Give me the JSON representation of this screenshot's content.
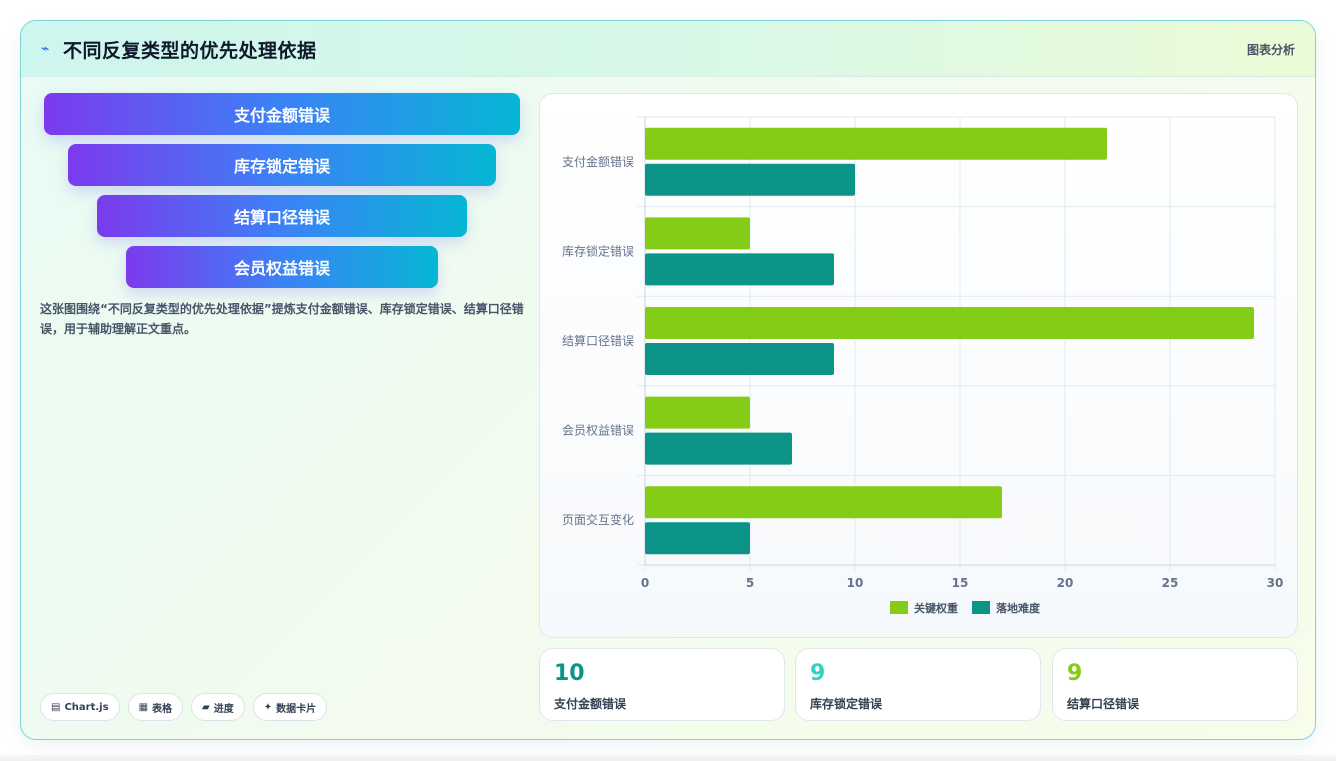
{
  "header": {
    "icon": "trend-icon",
    "title": "不同反复类型的优先处理依据",
    "tag": "图表分析"
  },
  "funnel": [
    {
      "label": "支付金额错误"
    },
    {
      "label": "库存锁定错误"
    },
    {
      "label": "结算口径错误"
    },
    {
      "label": "会员权益错误"
    }
  ],
  "description": "这张图围绕“不同反复类型的优先处理依据”提炼支付金额错误、库存锁定错误、结算口径错误，用于辅助理解正文重点。",
  "chips": [
    {
      "icon": "chart-icon",
      "glyph": "▤",
      "label": "Chart.js"
    },
    {
      "icon": "table-icon",
      "glyph": "▦",
      "label": "表格"
    },
    {
      "icon": "progress-icon",
      "glyph": "▰",
      "label": "进度"
    },
    {
      "icon": "sparkle-icon",
      "glyph": "✦",
      "label": "数据卡片"
    }
  ],
  "chart_data": {
    "type": "bar",
    "orientation": "horizontal",
    "categories": [
      "支付金额错误",
      "库存锁定错误",
      "结算口径错误",
      "会员权益错误",
      "页面交互变化"
    ],
    "series": [
      {
        "name": "关键权重",
        "color": "#84cc16",
        "values": [
          22,
          5,
          29,
          5,
          17
        ]
      },
      {
        "name": "落地难度",
        "color": "#0d9488",
        "values": [
          10,
          9,
          9,
          7,
          5
        ]
      }
    ],
    "xlim": [
      0,
      30
    ],
    "xticks": [
      0,
      5,
      10,
      15,
      20,
      25,
      30
    ],
    "grid": true,
    "legend": "bottom"
  },
  "stats": [
    {
      "value": "10",
      "label": "支付金额错误",
      "color": "#0d9488"
    },
    {
      "value": "9",
      "label": "库存锁定错误",
      "color": "#2dd4bf"
    },
    {
      "value": "9",
      "label": "结算口径错误",
      "color": "#84cc16"
    }
  ]
}
